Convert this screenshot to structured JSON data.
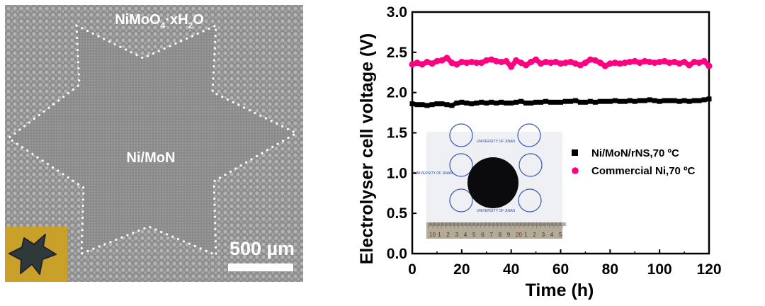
{
  "sem_panel": {
    "label_outer": "NiMoO",
    "label_outer_sub1": "4",
    "label_outer_mid": "·xH",
    "label_outer_sub2": "2",
    "label_outer_end": "O",
    "label_inner": "Ni/MoN",
    "scale_bar_label": "500 µm",
    "colors": {
      "inset_bg": "#c9a12a",
      "star": "#2e3a3a",
      "outline": "#ffffff"
    }
  },
  "photo_inset": {
    "watermark_text": "UNIVERSITY OF JINAN",
    "ruler_labels": [
      "10",
      "1",
      "2",
      "3",
      "4",
      "5",
      "6",
      "7",
      "8",
      "9",
      "20",
      "1",
      "2",
      "3",
      "4",
      "5"
    ]
  },
  "chart_data": {
    "type": "scatter",
    "xlabel": "Time (h)",
    "ylabel": "Electrolyser cell voltage (V)",
    "xlim": [
      0,
      120
    ],
    "ylim": [
      0,
      3.0
    ],
    "xticks": [
      "0",
      "20",
      "40",
      "60",
      "80",
      "100",
      "120"
    ],
    "yticks": [
      "0.0",
      "0.5",
      "1.0",
      "1.5",
      "2.0",
      "2.5",
      "3.0"
    ],
    "grid": false,
    "legend_position": "center-right",
    "x_start": 0,
    "x_step": 2,
    "series": [
      {
        "name": "Ni/MoN/rNS,70 ºC",
        "marker": "square",
        "color": "#000000",
        "values": [
          1.86,
          1.85,
          1.85,
          1.84,
          1.85,
          1.86,
          1.86,
          1.85,
          1.84,
          1.87,
          1.88,
          1.87,
          1.86,
          1.87,
          1.88,
          1.87,
          1.88,
          1.87,
          1.88,
          1.87,
          1.87,
          1.88,
          1.89,
          1.87,
          1.87,
          1.88,
          1.88,
          1.89,
          1.88,
          1.88,
          1.88,
          1.89,
          1.89,
          1.9,
          1.88,
          1.88,
          1.89,
          1.88,
          1.89,
          1.89,
          1.89,
          1.9,
          1.89,
          1.89,
          1.9,
          1.89,
          1.9,
          1.9,
          1.91,
          1.9,
          1.89,
          1.9,
          1.9,
          1.9,
          1.89,
          1.9,
          1.89,
          1.9,
          1.9,
          1.91,
          1.92
        ]
      },
      {
        "name": "Commercial Ni,70 ºC",
        "marker": "circle",
        "color": "#ff0080",
        "values": [
          2.35,
          2.37,
          2.35,
          2.38,
          2.36,
          2.39,
          2.4,
          2.43,
          2.37,
          2.35,
          2.38,
          2.37,
          2.38,
          2.37,
          2.37,
          2.4,
          2.41,
          2.39,
          2.38,
          2.39,
          2.32,
          2.4,
          2.37,
          2.34,
          2.38,
          2.41,
          2.36,
          2.38,
          2.37,
          2.38,
          2.36,
          2.37,
          2.38,
          2.36,
          2.34,
          2.37,
          2.41,
          2.4,
          2.37,
          2.33,
          2.36,
          2.37,
          2.36,
          2.37,
          2.38,
          2.39,
          2.37,
          2.39,
          2.38,
          2.37,
          2.38,
          2.39,
          2.37,
          2.38,
          2.36,
          2.38,
          2.34,
          2.38,
          2.37,
          2.39,
          2.33
        ]
      }
    ]
  }
}
